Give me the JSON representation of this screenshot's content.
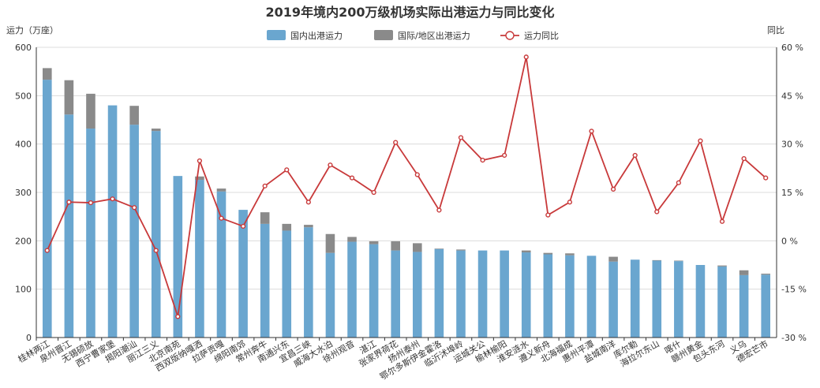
{
  "chart_data": {
    "type": "bar",
    "title": "2019年境内200万级机场实际出港运力与同比变化",
    "ylabel_left": "运力（万座）",
    "ylabel_right": "同比",
    "ylim_left": [
      0,
      600
    ],
    "ylim_right": [
      -30,
      60
    ],
    "yticks_left": [
      "0",
      "100",
      "200",
      "300",
      "400",
      "500",
      "600"
    ],
    "yticks_right": [
      "-30 %",
      "-15 %",
      "0 %",
      "15 %",
      "30 %",
      "45 %",
      "60 %"
    ],
    "grid": true,
    "legend_position": "top-center",
    "categories": [
      "桂林两江",
      "泉州晋江",
      "无锡硕放",
      "西宁曹家堡",
      "揭阳潮汕",
      "丽江三义",
      "北京南苑",
      "西双版纳嘎洒",
      "拉萨贡嘎",
      "绵阳南郊",
      "常州奔牛",
      "南通兴东",
      "宜昌三峡",
      "威海大水泊",
      "徐州观音",
      "湛江",
      "张家界荷花",
      "扬州泰州",
      "鄂尔多斯伊金霍洛",
      "临沂沭埠岭",
      "运城关公",
      "榆林榆阳",
      "淮安涟水",
      "遵义新舟",
      "北海福成",
      "惠州平潭",
      "盐城南洋",
      "库尔勒",
      "海拉尔东山",
      "喀什",
      "赣州黄金",
      "包头东河",
      "义乌",
      "德宏芒市"
    ],
    "series": [
      {
        "name": "国内出港运力",
        "type": "bar",
        "color": "#6aa6cf",
        "values": [
          533,
          461,
          432,
          480,
          440,
          427,
          334,
          326,
          302,
          264,
          235,
          221,
          228,
          175,
          198,
          193,
          180,
          177,
          183,
          180,
          180,
          180,
          176,
          172,
          170,
          169,
          157,
          161,
          159,
          158,
          150,
          147,
          129,
          130
        ]
      },
      {
        "name": "国际/地区出港运力",
        "type": "bar",
        "color": "#8a8a8a",
        "values": [
          24,
          71,
          72,
          0,
          39,
          5,
          0,
          7,
          6,
          0,
          24,
          14,
          5,
          39,
          10,
          6,
          19,
          18,
          1,
          2,
          0,
          0,
          4,
          3,
          4,
          0,
          10,
          0,
          1,
          1,
          0,
          2,
          10,
          2
        ]
      },
      {
        "name": "运力同比",
        "type": "line",
        "color": "#c8393a",
        "values": [
          -3,
          12,
          11.8,
          13,
          10.3,
          -3,
          -23.5,
          24.8,
          7,
          4.5,
          17,
          22,
          12,
          23.5,
          19.5,
          15,
          30.5,
          20.5,
          9.5,
          32,
          25,
          26.5,
          57,
          8,
          12,
          34,
          16,
          26.5,
          9,
          18,
          31,
          6,
          25.5,
          19.5
        ]
      }
    ]
  }
}
